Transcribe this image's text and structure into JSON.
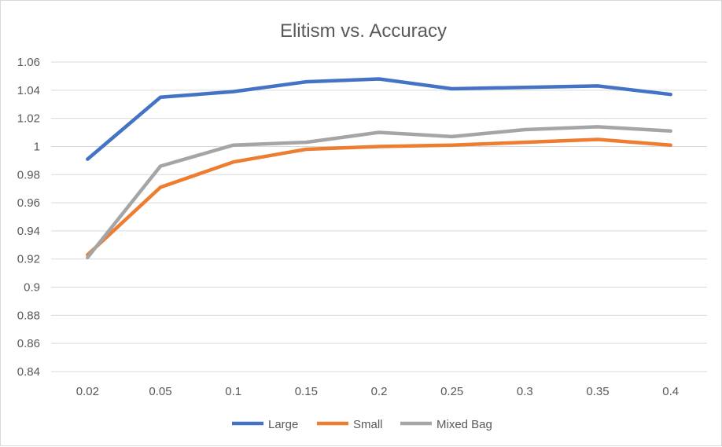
{
  "chart_data": {
    "type": "line",
    "title": "Elitism vs. Accuracy",
    "categories": [
      "0.02",
      "0.05",
      "0.1",
      "0.15",
      "0.2",
      "0.25",
      "0.3",
      "0.35",
      "0.4"
    ],
    "ylim": [
      0.84,
      1.06
    ],
    "yticks": [
      "0.84",
      "0.86",
      "0.88",
      "0.9",
      "0.92",
      "0.94",
      "0.96",
      "0.98",
      "1",
      "1.02",
      "1.04",
      "1.06"
    ],
    "grid": true,
    "legend_position": "bottom",
    "series": [
      {
        "name": "Large",
        "color": "#4472C4",
        "values": [
          0.991,
          1.035,
          1.039,
          1.046,
          1.048,
          1.041,
          1.042,
          1.043,
          1.037
        ]
      },
      {
        "name": "Small",
        "color": "#ED7D31",
        "values": [
          0.923,
          0.971,
          0.989,
          0.998,
          1.0,
          1.001,
          1.003,
          1.005,
          1.001
        ]
      },
      {
        "name": "Mixed Bag",
        "color": "#A5A5A5",
        "values": [
          0.921,
          0.986,
          1.001,
          1.003,
          1.01,
          1.007,
          1.012,
          1.014,
          1.011
        ]
      }
    ]
  }
}
